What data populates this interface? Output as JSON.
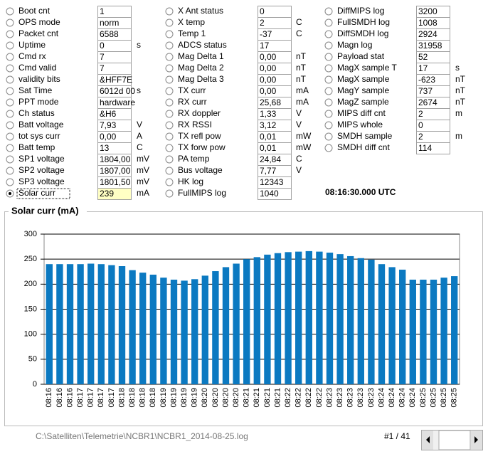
{
  "fields": [
    [
      {
        "label": "Boot cnt",
        "value": "1"
      },
      {
        "label": "OPS mode",
        "value": "norm"
      },
      {
        "label": "Packet cnt",
        "value": "6588"
      },
      {
        "label": "Uptime",
        "value": "0",
        "unit": "s"
      },
      {
        "label": "Cmd rx",
        "value": "7"
      },
      {
        "label": "Cmd valid",
        "value": "7"
      },
      {
        "label": "validity bits",
        "value": "&HFF7E"
      },
      {
        "label": "Sat Time",
        "value": "6012d 00",
        "unit": "s"
      },
      {
        "label": "PPT mode",
        "value": "hardware"
      },
      {
        "label": "Ch status",
        "value": "&H6"
      },
      {
        "label": "Batt voltage",
        "value": "7,93",
        "unit": "V"
      },
      {
        "label": "tot sys curr",
        "value": "0,00",
        "unit": "A"
      },
      {
        "label": "Batt temp",
        "value": "13",
        "unit": "C"
      },
      {
        "label": "SP1 voltage",
        "value": "1804,00",
        "unit": "mV"
      },
      {
        "label": "SP2 voltage",
        "value": "1807,00",
        "unit": "mV"
      },
      {
        "label": "SP3 voltage",
        "value": "1801,50",
        "unit": "mV"
      },
      {
        "label": "Solar curr",
        "value": "239",
        "unit": "mA",
        "selected": true
      }
    ],
    [
      {
        "label": "X Ant status",
        "value": "0"
      },
      {
        "label": "X temp",
        "value": "2",
        "unit": "C"
      },
      {
        "label": "Temp 1",
        "value": "-37",
        "unit": "C"
      },
      {
        "label": "ADCS status",
        "value": "17"
      },
      {
        "label": "Mag Delta 1",
        "value": "0,00",
        "unit": "nT"
      },
      {
        "label": "Mag Delta 2",
        "value": "0,00",
        "unit": "nT"
      },
      {
        "label": "Mag Delta 3",
        "value": "0,00",
        "unit": "nT"
      },
      {
        "label": "TX curr",
        "value": "0,00",
        "unit": "mA"
      },
      {
        "label": "RX curr",
        "value": "25,68",
        "unit": "mA"
      },
      {
        "label": "RX doppler",
        "value": "1,33",
        "unit": "V"
      },
      {
        "label": "RX RSSI",
        "value": "3,12",
        "unit": "V"
      },
      {
        "label": "TX refl pow",
        "value": "0,01",
        "unit": "mW"
      },
      {
        "label": "TX forw pow",
        "value": "0,01",
        "unit": "mW"
      },
      {
        "label": "PA temp",
        "value": "24,84",
        "unit": "C"
      },
      {
        "label": "Bus voltage",
        "value": "7,77",
        "unit": "V"
      },
      {
        "label": "HK log",
        "value": "12343"
      },
      {
        "label": "FullMIPS log",
        "value": "1040"
      }
    ],
    [
      {
        "label": "DiffMIPS log",
        "value": "3200"
      },
      {
        "label": "FullSMDH log",
        "value": "1008"
      },
      {
        "label": "DiffSMDH log",
        "value": "2924"
      },
      {
        "label": "Magn log",
        "value": "31958"
      },
      {
        "label": "Payload stat",
        "value": "52"
      },
      {
        "label": "MagX sample T",
        "value": "17",
        "unit": "s"
      },
      {
        "label": "MagX sample",
        "value": "-623",
        "unit": "nT"
      },
      {
        "label": "MagY sample",
        "value": "737",
        "unit": "nT"
      },
      {
        "label": "MagZ sample",
        "value": "2674",
        "unit": "nT"
      },
      {
        "label": "MIPS diff cnt",
        "value": "2",
        "unit": "m"
      },
      {
        "label": "MIPS whole",
        "value": "0"
      },
      {
        "label": "SMDH sample",
        "value": "2",
        "unit": "m"
      },
      {
        "label": "SMDH diff cnt",
        "value": "114"
      }
    ]
  ],
  "time": "08:16:30.000 UTC",
  "chart_data": {
    "type": "bar",
    "title": "Solar curr (mA)",
    "categories": [
      "08:16",
      "08:16",
      "08:16",
      "08:17",
      "08:17",
      "08:17",
      "08:17",
      "08:18",
      "08:18",
      "08:18",
      "08:18",
      "08:19",
      "08:19",
      "08:19",
      "08:19",
      "08:20",
      "08:20",
      "08:20",
      "08:20",
      "08:21",
      "08:21",
      "08:21",
      "08:21",
      "08:22",
      "08:22",
      "08:22",
      "08:22",
      "08:23",
      "08:23",
      "08:23",
      "08:23",
      "08:23",
      "08:24",
      "08:24",
      "08:24",
      "08:24",
      "08:25",
      "08:25",
      "08:25",
      "08:25"
    ],
    "values": [
      240,
      240,
      240,
      240,
      241,
      240,
      238,
      236,
      228,
      223,
      219,
      213,
      209,
      207,
      210,
      217,
      226,
      234,
      241,
      250,
      254,
      259,
      262,
      264,
      265,
      266,
      265,
      263,
      260,
      256,
      252,
      249,
      240,
      234,
      229,
      209,
      209,
      209,
      213,
      216
    ],
    "color": "#0b79c1",
    "ylim": [
      0,
      300
    ],
    "yticks": [
      0,
      50,
      100,
      150,
      200,
      250,
      300
    ],
    "grid": true
  },
  "footer": {
    "path": "C:\\Satelliten\\Telemetrie\\NCBR1\\NCBR1_2014-08-25.log",
    "page": "#1 / 41"
  }
}
